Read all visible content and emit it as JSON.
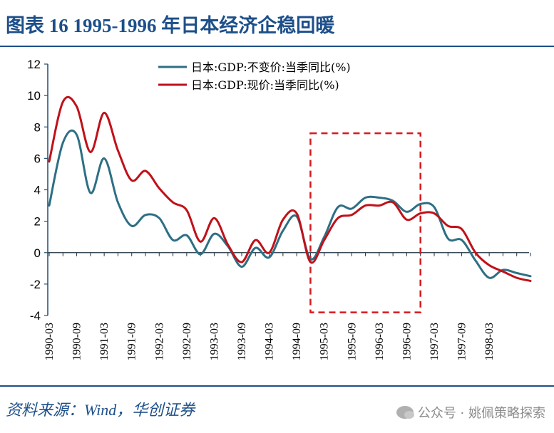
{
  "title": "图表 16    1995-1996 年日本经济企稳回暖",
  "source": "资料来源：Wind，华创证券",
  "watermark": "公众号 · 姚佩策略探索",
  "chart_data": {
    "type": "line",
    "title": "图表 16    1995-1996 年日本经济企稳回暖",
    "ylim": [
      -4,
      12
    ],
    "yticks": [
      -4,
      -2,
      0,
      2,
      4,
      6,
      8,
      10,
      12
    ],
    "x": [
      "1990-03",
      "1990-06",
      "1990-09",
      "1990-12",
      "1991-03",
      "1991-06",
      "1991-09",
      "1991-12",
      "1992-03",
      "1992-06",
      "1992-09",
      "1992-12",
      "1993-03",
      "1993-06",
      "1993-09",
      "1993-12",
      "1994-03",
      "1994-06",
      "1994-09",
      "1994-12",
      "1995-03",
      "1995-06",
      "1995-09",
      "1995-12",
      "1996-03",
      "1996-06",
      "1996-09",
      "1996-12",
      "1997-03",
      "1997-06",
      "1997-09",
      "1997-12",
      "1998-03",
      "1998-06",
      "1998-09",
      "1998-12"
    ],
    "xtick_labels": [
      "1990-03",
      "1990-09",
      "1991-03",
      "1991-09",
      "1992-03",
      "1992-09",
      "1993-03",
      "1993-09",
      "1994-03",
      "1994-09",
      "1995-03",
      "1995-09",
      "1996-03",
      "1996-09",
      "1997-03",
      "1997-09",
      "1998-03"
    ],
    "series": [
      {
        "name": "日本:GDP:不变价:当季同比(%)",
        "color": "#2e6f84",
        "values": [
          3.0,
          7.0,
          7.5,
          3.8,
          6.0,
          3.2,
          1.7,
          2.4,
          2.2,
          0.8,
          1.1,
          -0.1,
          1.2,
          0.4,
          -0.9,
          0.3,
          -0.3,
          1.4,
          2.3,
          -0.4,
          1.0,
          2.9,
          2.8,
          3.5,
          3.5,
          3.3,
          2.6,
          3.1,
          2.9,
          0.9,
          0.8,
          -0.5,
          -1.6,
          -1.1,
          -1.3,
          -1.5
        ]
      },
      {
        "name": "日本:GDP:现价:当季同比(%)",
        "color": "#c0111a",
        "values": [
          5.8,
          9.6,
          9.3,
          6.4,
          8.9,
          6.5,
          4.6,
          5.2,
          4.1,
          3.2,
          2.7,
          0.7,
          2.2,
          0.5,
          -0.6,
          0.8,
          0.0,
          2.1,
          2.5,
          -0.6,
          0.8,
          2.2,
          2.4,
          3.0,
          3.0,
          3.2,
          2.1,
          2.5,
          2.5,
          1.7,
          1.5,
          0.0,
          -0.8,
          -1.2,
          -1.6,
          -1.8
        ]
      }
    ],
    "highlight_box": {
      "x_from": "1994-12",
      "x_to": "1996-12",
      "y_from": -3.8,
      "y_to": 7.6,
      "color": "#d7191c"
    },
    "legend_position": "top-center",
    "grid": false
  }
}
